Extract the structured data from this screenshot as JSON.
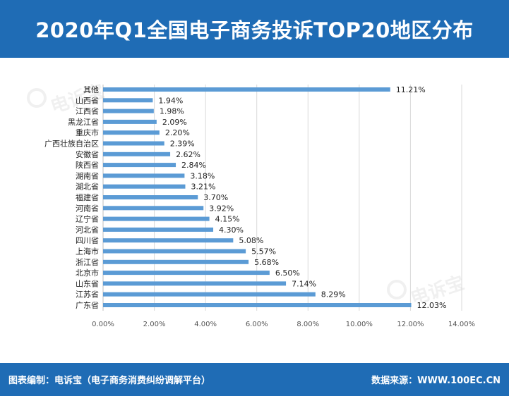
{
  "header": {
    "title": "2020年Q1全国电子商务投诉TOP20地区分布"
  },
  "footer": {
    "left_text": "图表编制：电诉宝（电子商务消费纠纷调解平台）",
    "right_text": "数据来源：WWW.100EC.CN"
  },
  "watermark": {
    "text": "电诉宝"
  },
  "colors": {
    "header_bg": "#1f6cb5",
    "bar": "#5b9bd5",
    "grid": "#d9d9d9",
    "text": "#222222",
    "tick_text": "#555555"
  },
  "chart_data": {
    "type": "bar",
    "orientation": "horizontal",
    "title": "2020年Q1全国电子商务投诉TOP20地区分布",
    "categories": [
      "其他",
      "山西省",
      "江西省",
      "黑龙江省",
      "重庆市",
      "广西壮族自治区",
      "安徽省",
      "陕西省",
      "湖南省",
      "湖北省",
      "福建省",
      "河南省",
      "辽宁省",
      "河北省",
      "四川省",
      "上海市",
      "浙江省",
      "北京市",
      "山东省",
      "江苏省",
      "广东省"
    ],
    "values": [
      11.21,
      1.94,
      1.98,
      2.09,
      2.2,
      2.39,
      2.62,
      2.84,
      3.18,
      3.21,
      3.7,
      3.92,
      4.15,
      4.3,
      5.08,
      5.57,
      5.68,
      6.5,
      7.14,
      8.29,
      12.03
    ],
    "value_labels": [
      "11.21%",
      "1.94%",
      "1.98%",
      "2.09%",
      "2.20%",
      "2.39%",
      "2.62%",
      "2.84%",
      "3.18%",
      "3.21%",
      "3.70%",
      "3.92%",
      "4.15%",
      "4.30%",
      "5.08%",
      "5.57%",
      "5.68%",
      "6.50%",
      "7.14%",
      "8.29%",
      "12.03%"
    ],
    "x_ticks": [
      0,
      2,
      4,
      6,
      8,
      10,
      12,
      14
    ],
    "x_tick_labels": [
      "0.00%",
      "2.00%",
      "4.00%",
      "6.00%",
      "8.00%",
      "10.00%",
      "12.00%",
      "14.00%"
    ],
    "xlim": [
      0,
      14
    ],
    "xlabel": "",
    "ylabel": "",
    "grid": true,
    "legend": "none"
  }
}
